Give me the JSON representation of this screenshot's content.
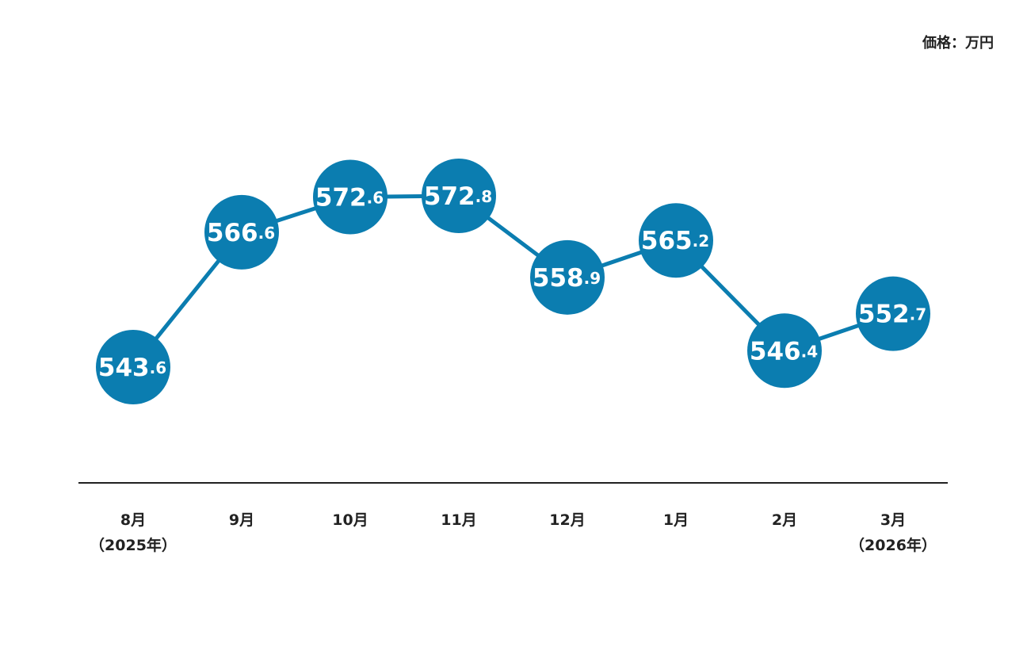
{
  "chart_data": {
    "type": "line",
    "unit_label": "価格：万円",
    "categories": [
      "8月\n（2025年）",
      "9月",
      "10月",
      "11月",
      "12月",
      "1月",
      "2月",
      "3月\n（2026年）"
    ],
    "values": [
      543.6,
      566.6,
      572.6,
      572.8,
      558.9,
      565.2,
      546.4,
      552.7
    ],
    "color": "#0b7db0"
  }
}
